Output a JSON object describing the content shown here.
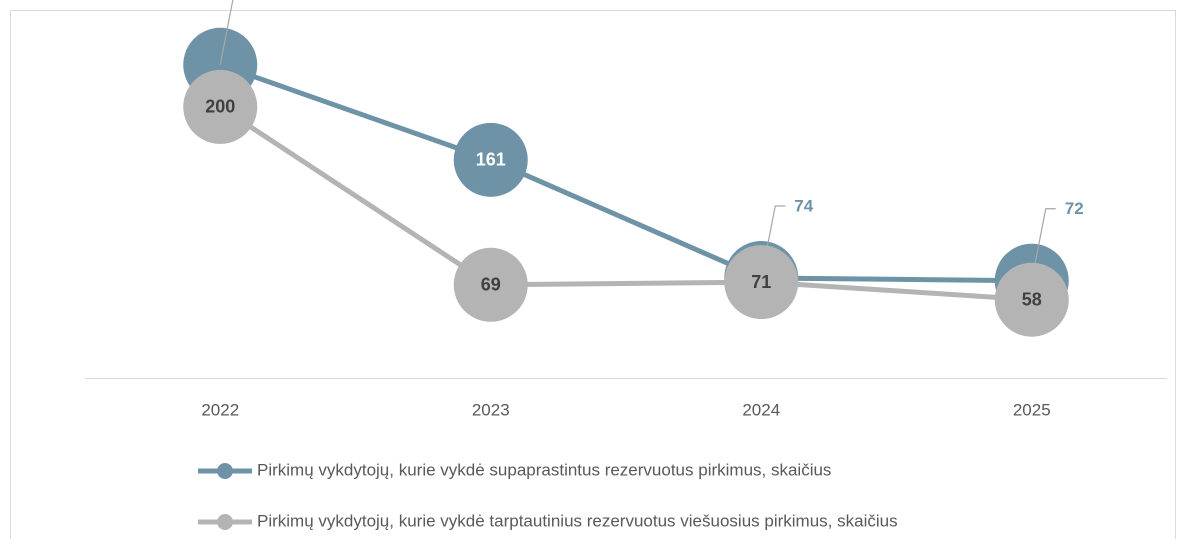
{
  "chart_data": {
    "type": "line",
    "categories": [
      "2022",
      "2023",
      "2024",
      "2025"
    ],
    "series": [
      {
        "name": "Pirkimų vykdytojų, kurie vykdė supaprastintus rezervuotus pirkimus, skaičius",
        "color": "#6f93a6",
        "values": [
          231,
          161,
          74,
          72
        ]
      },
      {
        "name": "Pirkimų vykdytojų, kurie vykdė tarptautinius rezervuotus viešuosius pirkimus, skaičius",
        "color": "#b4b4b4",
        "values": [
          200,
          69,
          71,
          58
        ]
      }
    ],
    "ylim": [
      0,
      250
    ]
  }
}
